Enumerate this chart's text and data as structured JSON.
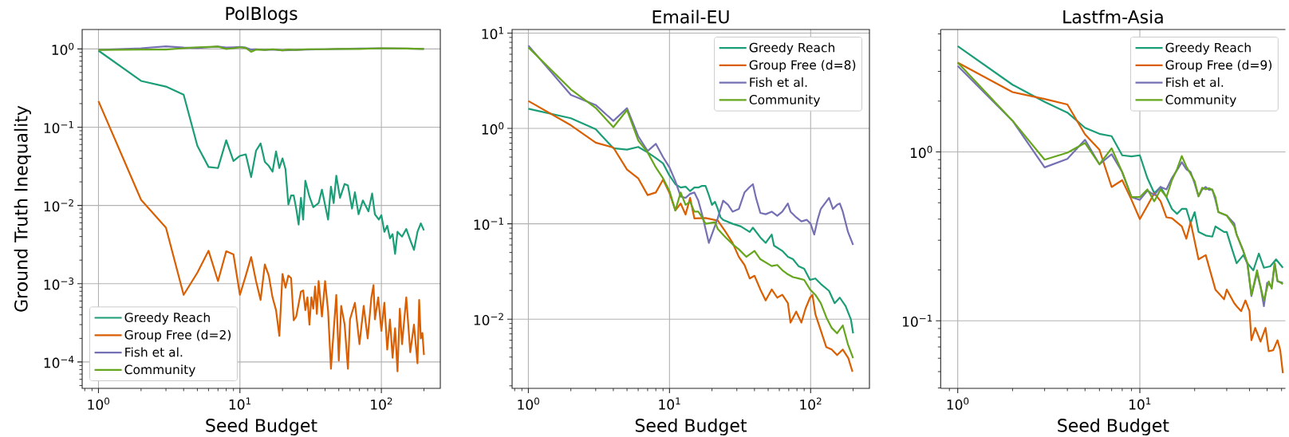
{
  "chart_data": [
    {
      "type": "line",
      "title": "PolBlogs",
      "xlabel": "Seed Budget",
      "ylabel": "Ground Truth Inequality",
      "log": "xy",
      "grid": true,
      "legend": "bottom left",
      "xlim": [
        0.767,
        261
      ],
      "ylim": [
        4.6e-05,
        1.77
      ],
      "xticks": [
        {
          "value": 1,
          "label": "10$^{0}$"
        },
        {
          "value": 10,
          "label": "10$^{1}$"
        },
        {
          "value": 100,
          "label": "10$^{2}$"
        }
      ],
      "yticks": [
        {
          "value": 0.0001,
          "label": "10$^{−4}$"
        },
        {
          "value": 0.001,
          "label": "10$^{−3}$"
        },
        {
          "value": 0.01,
          "label": "10$^{−2}$"
        },
        {
          "value": 0.1,
          "label": "10$^{−1}$"
        },
        {
          "value": 1,
          "label": "10$^{0}$"
        }
      ],
      "series": [
        {
          "name": "Greedy Reach",
          "color": "#1b9e77",
          "x": [
            1,
            2,
            3,
            4,
            5,
            6,
            7,
            8,
            9,
            10,
            11,
            12,
            13,
            14,
            15,
            16,
            17,
            18,
            19,
            20,
            21,
            22,
            23,
            24,
            25,
            26,
            27,
            28,
            29,
            31,
            33,
            36,
            38,
            42,
            44,
            46,
            48,
            51,
            55,
            58,
            62,
            65,
            69,
            74,
            81,
            86,
            90,
            96,
            100,
            105,
            110,
            115,
            120,
            125,
            130,
            140,
            150,
            160,
            170,
            180,
            190,
            200
          ],
          "values": [
            0.95,
            0.39,
            0.33,
            0.26,
            0.058,
            0.031,
            0.03,
            0.068,
            0.037,
            0.043,
            0.045,
            0.023,
            0.05,
            0.062,
            0.036,
            0.032,
            0.027,
            0.049,
            0.03,
            0.04,
            0.029,
            0.0103,
            0.0134,
            0.0134,
            0.0091,
            0.0057,
            0.0125,
            0.0066,
            0.0207,
            0.013,
            0.0095,
            0.0107,
            0.0159,
            0.0066,
            0.0174,
            0.0107,
            0.024,
            0.0125,
            0.0188,
            0.018,
            0.0091,
            0.0147,
            0.0077,
            0.0116,
            0.0084,
            0.0142,
            0.0077,
            0.0066,
            0.0075,
            0.0046,
            0.0055,
            0.0038,
            0.0043,
            0.0024,
            0.0046,
            0.004,
            0.005,
            0.0036,
            0.0027,
            0.0046,
            0.0059,
            0.0048
          ]
        },
        {
          "name": "Group Free (d=2)",
          "color": "#d95f02",
          "x": [
            1,
            2,
            3,
            4,
            5,
            6,
            7,
            8,
            9,
            10,
            11,
            12,
            13,
            14,
            15,
            16,
            17,
            18,
            19,
            20,
            21,
            22,
            23,
            24,
            25,
            27,
            28,
            29,
            30,
            31,
            32,
            33,
            34,
            35,
            36,
            38,
            40,
            42,
            44,
            46,
            48,
            50,
            52,
            55,
            58,
            60,
            65,
            70,
            75,
            80,
            85,
            88,
            90,
            95,
            100,
            105,
            110,
            115,
            120,
            125,
            130,
            135,
            140,
            150,
            160,
            170,
            180,
            185,
            190,
            195,
            200
          ],
          "values": [
            0.215,
            0.0118,
            0.0052,
            0.00072,
            0.00138,
            0.00264,
            0.00108,
            0.0026,
            0.00237,
            0.00072,
            0.00127,
            0.00219,
            0.00108,
            0.00062,
            0.00176,
            0.00127,
            0.00067,
            0.00046,
            0.000215,
            0.00133,
            0.00089,
            0.00127,
            0.00118,
            0.00034,
            0.00038,
            0.00079,
            0.00082,
            0.00046,
            0.00067,
            0.0003,
            0.00067,
            0.00048,
            0.00092,
            0.00041,
            0.00108,
            0.00038,
            0.00108,
            0.00045,
            8.2e-05,
            0.00025,
            0.00072,
            0.000104,
            0.00052,
            0.0003,
            8.2e-05,
            0.00035,
            0.00057,
            0.000169,
            0.00052,
            0.0002,
            0.00067,
            0.00096,
            0.00035,
            0.00067,
            0.00025,
            0.00057,
            0.000144,
            0.00035,
            0.000113,
            0.00027,
            7.6e-05,
            0.00048,
            0.000169,
            0.00067,
            0.000133,
            0.0003,
            9.6e-05,
            0.00062,
            0.0002,
            0.000234,
            0.000123
          ]
        },
        {
          "name": "Fish et al.",
          "color": "#7570b3",
          "x": [
            1,
            2,
            3,
            4,
            5,
            6,
            7,
            8,
            9,
            10,
            11,
            12,
            13,
            15,
            17,
            20,
            25,
            30,
            40,
            50,
            70,
            100,
            150,
            200
          ],
          "values": [
            0.97,
            1.02,
            1.08,
            1.04,
            1.03,
            1.05,
            1.07,
            1.04,
            1.05,
            1.06,
            1.04,
            0.98,
            0.99,
            0.97,
            0.98,
            0.96,
            0.97,
            0.98,
            0.99,
            1.0,
            1.01,
            1.02,
            1.01,
            1.0
          ]
        },
        {
          "name": "Community",
          "color": "#66a61e",
          "x": [
            1,
            2,
            3,
            4,
            5,
            6,
            7,
            8,
            9,
            10,
            11,
            12,
            13,
            15,
            17,
            20,
            22,
            25,
            30,
            40,
            50,
            70,
            100,
            150,
            200
          ],
          "values": [
            0.97,
            0.98,
            0.98,
            1.02,
            1.05,
            1.06,
            1.07,
            1.0,
            1.02,
            1.05,
            1.03,
            0.92,
            0.98,
            0.97,
            0.99,
            0.96,
            0.98,
            0.97,
            0.99,
            0.99,
            1.0,
            1.0,
            1.02,
            1.01,
            1.0
          ]
        }
      ]
    },
    {
      "type": "line",
      "title": "Email-EU",
      "xlabel": "Seed Budget",
      "log": "xy",
      "grid": true,
      "legend": "top right",
      "xlim": [
        0.767,
        261
      ],
      "ylim": [
        0.00188,
        10.9
      ],
      "xticks": [
        {
          "value": 1,
          "label": "10$^{0}$"
        },
        {
          "value": 10,
          "label": "10$^{1}$"
        },
        {
          "value": 100,
          "label": "10$^{2}$"
        }
      ],
      "yticks": [
        {
          "value": 0.01,
          "label": "10$^{−2}$"
        },
        {
          "value": 0.1,
          "label": "10$^{−1}$"
        },
        {
          "value": 1,
          "label": "10$^{0}$"
        },
        {
          "value": 10,
          "label": "10$^{1}$"
        }
      ],
      "series": [
        {
          "name": "Greedy Reach",
          "color": "#1b9e77",
          "x": [
            1,
            2,
            3,
            4,
            5,
            6,
            7,
            8,
            9,
            10,
            11,
            12,
            13,
            14,
            15,
            16,
            17,
            18,
            19,
            20,
            21,
            22,
            23,
            24,
            28,
            32,
            37,
            39,
            44,
            48,
            53,
            55,
            63,
            69,
            75,
            82,
            90,
            99,
            108,
            118,
            135,
            148,
            161,
            177,
            193,
            200
          ],
          "values": [
            1.61,
            1.28,
            0.98,
            0.62,
            0.6,
            0.64,
            0.56,
            0.49,
            0.43,
            0.32,
            0.26,
            0.24,
            0.245,
            0.22,
            0.24,
            0.24,
            0.25,
            0.25,
            0.2,
            0.158,
            0.17,
            0.143,
            0.117,
            0.11,
            0.1,
            0.094,
            0.082,
            0.091,
            0.072,
            0.063,
            0.077,
            0.059,
            0.052,
            0.045,
            0.0425,
            0.036,
            0.0337,
            0.0258,
            0.0267,
            0.0234,
            0.0198,
            0.0147,
            0.0168,
            0.0137,
            0.0099,
            0.0071
          ]
        },
        {
          "name": "Group Free (d=8)",
          "color": "#d95f02",
          "x": [
            1,
            2,
            3,
            4,
            5,
            6,
            7,
            8,
            9,
            10,
            11,
            12,
            13,
            14,
            15,
            18,
            22,
            25,
            28,
            31,
            34,
            37,
            40,
            44,
            48,
            53,
            58,
            63,
            69,
            72,
            79,
            86,
            92,
            99,
            103,
            108,
            118,
            129,
            141,
            154,
            169,
            185,
            198
          ],
          "values": [
            1.94,
            1.08,
            0.71,
            0.63,
            0.37,
            0.3,
            0.2,
            0.213,
            0.29,
            0.21,
            0.138,
            0.163,
            0.125,
            0.187,
            0.114,
            0.115,
            0.108,
            0.082,
            0.063,
            0.045,
            0.037,
            0.0267,
            0.0285,
            0.0205,
            0.0157,
            0.0205,
            0.0168,
            0.018,
            0.0147,
            0.0092,
            0.012,
            0.0092,
            0.0129,
            0.0168,
            0.018,
            0.0113,
            0.0076,
            0.0051,
            0.0048,
            0.0042,
            0.0048,
            0.0039,
            0.0028
          ]
        },
        {
          "name": "Fish et al.",
          "color": "#7570b3",
          "x": [
            1,
            2,
            3,
            4,
            5,
            6,
            7,
            8,
            9,
            10,
            11,
            12,
            13,
            14,
            15,
            16,
            17,
            19,
            22,
            24,
            26,
            28,
            31,
            34,
            37,
            39,
            41,
            44,
            48,
            53,
            58,
            63,
            69,
            72,
            79,
            86,
            94,
            100,
            106,
            112,
            118,
            135,
            144,
            154,
            161,
            169,
            184,
            200
          ],
          "values": [
            7.4,
            2.25,
            1.76,
            1.2,
            1.63,
            0.83,
            0.58,
            0.69,
            0.5,
            0.39,
            0.28,
            0.193,
            0.187,
            0.206,
            0.213,
            0.175,
            0.126,
            0.063,
            0.115,
            0.175,
            0.158,
            0.134,
            0.143,
            0.213,
            0.243,
            0.26,
            0.187,
            0.13,
            0.126,
            0.134,
            0.121,
            0.134,
            0.163,
            0.134,
            0.117,
            0.106,
            0.11,
            0.1,
            0.077,
            0.11,
            0.143,
            0.187,
            0.143,
            0.158,
            0.163,
            0.134,
            0.082,
            0.06
          ]
        },
        {
          "name": "Community",
          "color": "#66a61e",
          "x": [
            1,
            2,
            3,
            4,
            5,
            6,
            7,
            8,
            9,
            10,
            11,
            12,
            13,
            14,
            15,
            16,
            17,
            18,
            21,
            22,
            25,
            28,
            31,
            35,
            40,
            44,
            53,
            58,
            63,
            69,
            75,
            82,
            90,
            99,
            108,
            118,
            129,
            141,
            154,
            169,
            184,
            200
          ],
          "values": [
            7.08,
            2.57,
            1.64,
            1.03,
            1.56,
            0.75,
            0.56,
            0.39,
            0.3,
            0.22,
            0.138,
            0.213,
            0.158,
            0.17,
            0.134,
            0.134,
            0.117,
            0.1,
            0.104,
            0.088,
            0.072,
            0.061,
            0.054,
            0.045,
            0.052,
            0.0425,
            0.036,
            0.037,
            0.0326,
            0.0295,
            0.0276,
            0.0267,
            0.0258,
            0.0205,
            0.018,
            0.0147,
            0.0105,
            0.0081,
            0.0071,
            0.0086,
            0.0054,
            0.0039
          ]
        }
      ]
    },
    {
      "type": "line",
      "title": "Lastfm-Asia",
      "xlabel": "Seed Budget",
      "log": "xy",
      "grid": true,
      "legend": "top right",
      "xlim": [
        0.806,
        63
      ],
      "ylim": [
        0.0398,
        5.31
      ],
      "xticks": [
        {
          "value": 1,
          "label": "10$^{0}$"
        },
        {
          "value": 10,
          "label": "10$^{1}$"
        }
      ],
      "yticks": [
        {
          "value": 0.1,
          "label": "10$^{−1}$"
        },
        {
          "value": 1,
          "label": "10$^{0}$"
        }
      ],
      "series": [
        {
          "name": "Greedy Reach",
          "color": "#1b9e77",
          "x": [
            1,
            2,
            3,
            4,
            5,
            6,
            7,
            8,
            9,
            10,
            11,
            12,
            13,
            14,
            15,
            16,
            17,
            18,
            19,
            20,
            21,
            23,
            25,
            26,
            29,
            30,
            32,
            34,
            37,
            39,
            42,
            45,
            48,
            52,
            56,
            61
          ],
          "values": [
            4.23,
            2.5,
            1.98,
            1.71,
            1.39,
            1.28,
            1.24,
            0.955,
            0.94,
            0.955,
            0.7,
            0.57,
            0.62,
            0.54,
            0.46,
            0.43,
            0.46,
            0.46,
            0.38,
            0.44,
            0.336,
            0.32,
            0.315,
            0.362,
            0.336,
            0.336,
            0.268,
            0.219,
            0.245,
            0.219,
            0.199,
            0.25,
            0.206,
            0.21,
            0.231,
            0.206
          ]
        },
        {
          "name": "Group Free (d=9)",
          "color": "#d95f02",
          "x": [
            1,
            2,
            3,
            4,
            5,
            6,
            7,
            8,
            9,
            10,
            11,
            12,
            13,
            14,
            15,
            17,
            18,
            19,
            21,
            23,
            26,
            29,
            30,
            33,
            34,
            36,
            38,
            40,
            41,
            43,
            46,
            49,
            51,
            54,
            57,
            59,
            61
          ],
          "values": [
            3.38,
            2.26,
            2.06,
            1.91,
            1.27,
            1.03,
            0.62,
            0.68,
            0.52,
            0.4,
            0.48,
            0.57,
            0.51,
            0.41,
            0.405,
            0.362,
            0.306,
            0.384,
            0.231,
            0.245,
            0.153,
            0.134,
            0.153,
            0.127,
            0.122,
            0.114,
            0.132,
            0.114,
            0.0767,
            0.0907,
            0.0752,
            0.0907,
            0.066,
            0.067,
            0.0767,
            0.067,
            0.049
          ]
        },
        {
          "name": "Fish et al.",
          "color": "#7570b3",
          "x": [
            1,
            2,
            3,
            4,
            5,
            6,
            7,
            8,
            9,
            10,
            11,
            12,
            13,
            14,
            15,
            16,
            17,
            18,
            19,
            20,
            21,
            22,
            23,
            24,
            25,
            26,
            27,
            30,
            33,
            34,
            37,
            39,
            41,
            44,
            46,
            48,
            50,
            53,
            55,
            57,
            61
          ],
          "values": [
            3.23,
            1.53,
            0.81,
            0.91,
            1.18,
            0.845,
            0.97,
            0.76,
            0.54,
            0.52,
            0.59,
            0.555,
            0.62,
            0.6,
            0.7,
            0.78,
            0.87,
            0.79,
            0.76,
            0.65,
            0.546,
            0.6,
            0.62,
            0.595,
            0.6,
            0.52,
            0.44,
            0.42,
            0.377,
            0.324,
            0.259,
            0.215,
            0.14,
            0.192,
            0.159,
            0.122,
            0.168,
            0.159,
            0.219,
            0.171,
            0.168
          ]
        },
        {
          "name": "Community",
          "color": "#66a61e",
          "x": [
            1,
            2,
            3,
            4,
            5,
            6,
            7,
            8,
            9,
            10,
            11,
            12,
            13,
            14,
            15,
            16,
            17,
            18,
            19,
            20,
            21,
            22,
            23,
            24,
            25,
            26,
            27,
            30,
            33,
            34,
            37,
            39,
            41,
            44,
            46,
            48,
            51,
            53,
            55,
            57,
            61
          ],
          "values": [
            3.38,
            1.53,
            0.9,
            0.99,
            1.13,
            0.845,
            1.05,
            0.76,
            0.54,
            0.54,
            0.6,
            0.51,
            0.6,
            0.54,
            0.68,
            0.79,
            0.945,
            0.82,
            0.74,
            0.67,
            0.546,
            0.614,
            0.6,
            0.61,
            0.595,
            0.54,
            0.44,
            0.42,
            0.362,
            0.324,
            0.259,
            0.219,
            0.142,
            0.199,
            0.159,
            0.132,
            0.171,
            0.155,
            0.219,
            0.173,
            0.165
          ]
        }
      ]
    }
  ]
}
